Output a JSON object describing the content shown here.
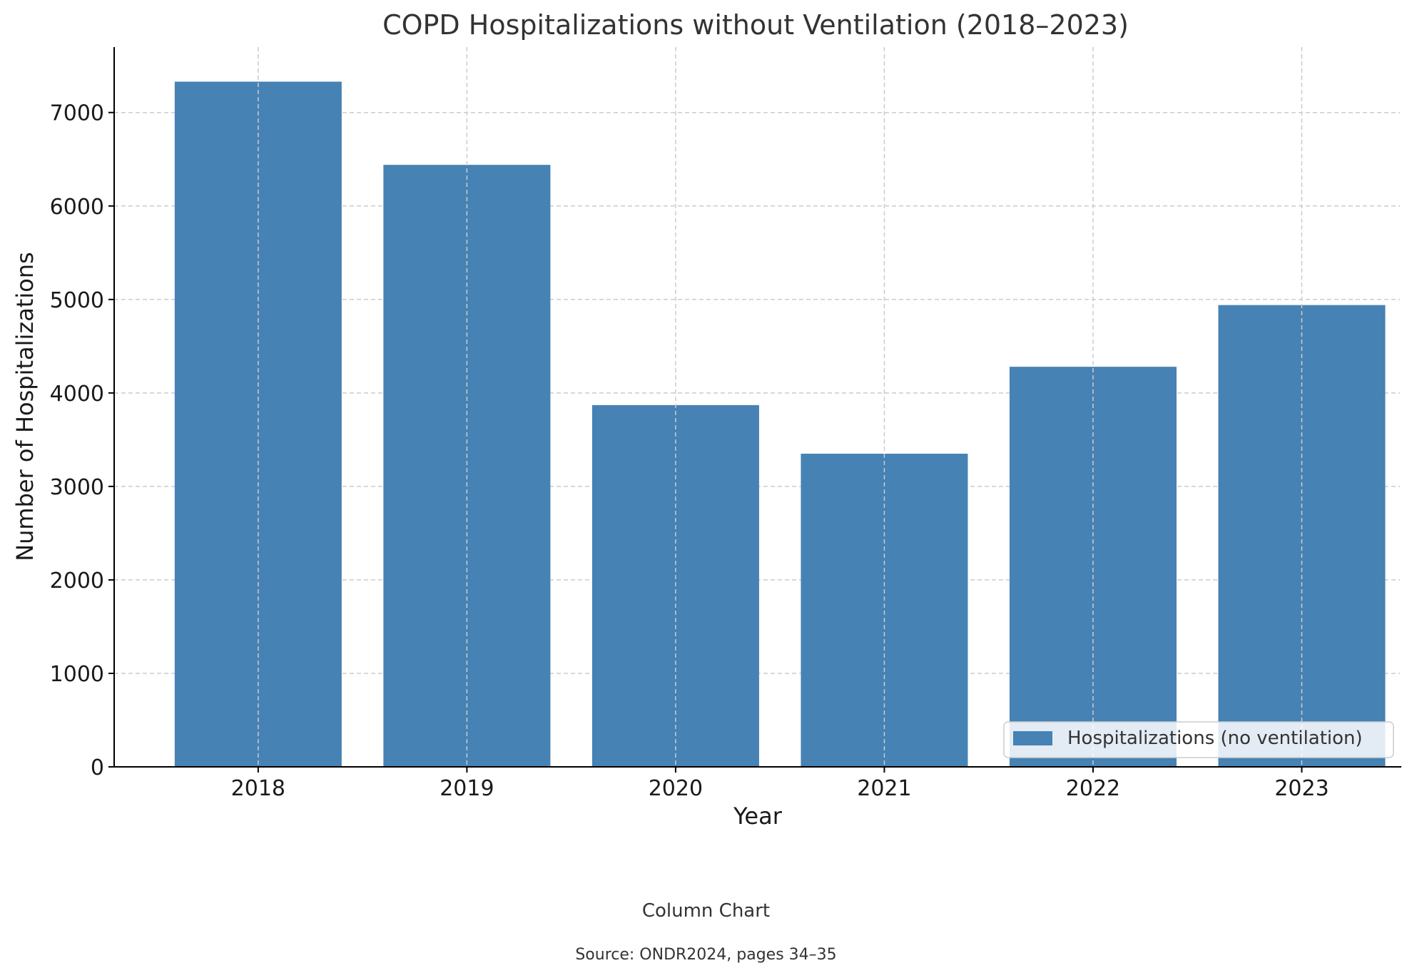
{
  "chart_data": {
    "type": "bar",
    "title": "COPD Hospitalizations without Ventilation (2018–2023)",
    "xlabel": "Year",
    "ylabel": "Number of Hospitalizations",
    "categories": [
      "2018",
      "2019",
      "2020",
      "2021",
      "2022",
      "2023"
    ],
    "series": [
      {
        "name": "Hospitalizations (no ventilation)",
        "values": [
          7330,
          6440,
          3870,
          3350,
          4280,
          4940
        ],
        "color": "#4682b4"
      }
    ],
    "ylim": [
      0,
      7700
    ],
    "yticks": [
      0,
      1000,
      2000,
      3000,
      4000,
      5000,
      6000,
      7000
    ],
    "grid": true,
    "legend_position": "lower-right"
  },
  "caption": "Column Chart",
  "source": "Source: ONDR2024, pages 34–35"
}
